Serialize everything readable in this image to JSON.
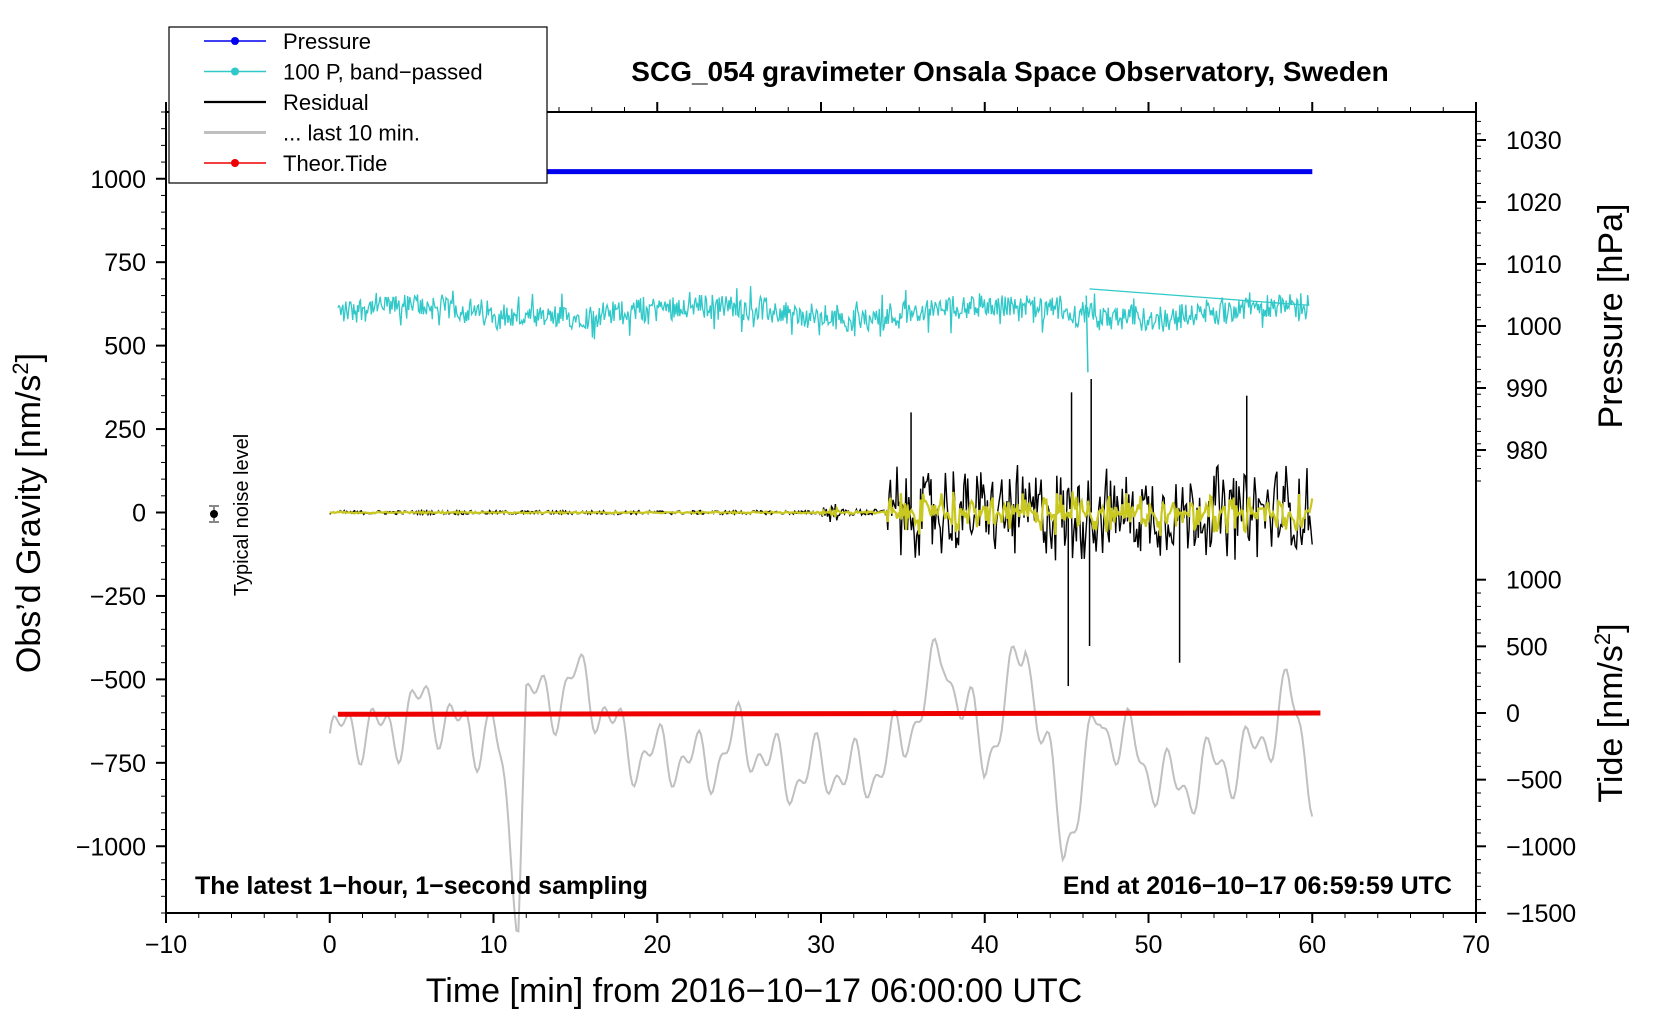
{
  "chart_data": {
    "type": "line",
    "title": "SCG_054 gravimeter Onsala Space Observatory, Sweden",
    "xlabel": "Time [min] from 2016−10−17 06:00:00 UTC",
    "ylabel_left": "Obs’d Gravity [nm/s²]",
    "ylabel_right_pressure": "Pressure [hPa]",
    "ylabel_right_tide": "Tide [nm/s²]",
    "xlim": [
      -10,
      70
    ],
    "ylim_left": [
      -1200,
      1200
    ],
    "x_ticks": [
      {
        "v": -10,
        "t": "−10"
      },
      {
        "v": 0,
        "t": "0"
      },
      {
        "v": 10,
        "t": "10"
      },
      {
        "v": 20,
        "t": "20"
      },
      {
        "v": 30,
        "t": "30"
      },
      {
        "v": 40,
        "t": "40"
      },
      {
        "v": 50,
        "t": "50"
      },
      {
        "v": 60,
        "t": "60"
      },
      {
        "v": 70,
        "t": "70"
      }
    ],
    "y_ticks_left": [
      {
        "v": 1000,
        "t": "1000"
      },
      {
        "v": 750,
        "t": "750"
      },
      {
        "v": 500,
        "t": "500"
      },
      {
        "v": 250,
        "t": "250"
      },
      {
        "v": 0,
        "t": "0"
      },
      {
        "v": -250,
        "t": "−250"
      },
      {
        "v": -500,
        "t": "−500"
      },
      {
        "v": -750,
        "t": "−750"
      },
      {
        "v": -1000,
        "t": "−1000"
      }
    ],
    "pressure_axis": {
      "ticks": [
        {
          "v": 1030,
          "t": "1030"
        },
        {
          "v": 1020,
          "t": "1020"
        },
        {
          "v": 1010,
          "t": "1010"
        },
        {
          "v": 1000,
          "t": "1000"
        },
        {
          "v": 990,
          "t": "990"
        },
        {
          "v": 980,
          "t": "980"
        }
      ]
    },
    "tide_axis": {
      "ticks": [
        {
          "v": 1000,
          "t": "1000"
        },
        {
          "v": 500,
          "t": "500"
        },
        {
          "v": 0,
          "t": "0"
        },
        {
          "v": -500,
          "t": "−500"
        },
        {
          "v": -1000,
          "t": "−1000"
        },
        {
          "v": -1500,
          "t": "−1500"
        }
      ]
    },
    "legend": [
      {
        "name": "Pressure",
        "color": "#0000ee",
        "marker": true
      },
      {
        "name": "100 P, band−passed",
        "color": "#30c8c8",
        "marker": true
      },
      {
        "name": "Residual",
        "color": "#000000",
        "marker": false
      },
      {
        "name": "... last 10 min.",
        "color": "#c0c0c0",
        "marker": false
      },
      {
        "name": "Theor.Tide",
        "color": "#ee0000",
        "marker": true
      }
    ],
    "series": [
      {
        "name": "Pressure",
        "color": "#0000ee",
        "x": [
          0,
          60
        ],
        "y_hpa": [
          1024.9,
          1024.9
        ],
        "y_gravity_axis": [
          1015,
          1015
        ]
      },
      {
        "name": "100 P, band−passed",
        "color": "#30c8c8",
        "x_range": [
          0.5,
          59.8
        ],
        "mean": 600,
        "min": 420,
        "max": 720
      },
      {
        "name": "Residual",
        "color": "#000000",
        "x_range": [
          0,
          60
        ],
        "mean": 0,
        "quiet_until": 34,
        "peaks": [
          {
            "x": 35.5,
            "y": 300
          },
          {
            "x": 45.3,
            "y": 360
          },
          {
            "x": 46.5,
            "y": 400
          },
          {
            "x": 56,
            "y": 350
          },
          {
            "x": 45.1,
            "y": -520
          },
          {
            "x": 46.4,
            "y": -400
          },
          {
            "x": 51.9,
            "y": -450
          }
        ]
      },
      {
        "name": "... last 10 min.",
        "color": "#c0c0c0",
        "x": [
          0,
          5,
          10,
          11.5,
          12,
          15,
          20,
          25,
          30,
          35,
          37.5,
          40,
          42.5,
          44.8,
          47,
          50,
          55,
          58.5,
          60
        ],
        "y": [
          -700,
          -600,
          -650,
          -1200,
          -550,
          -520,
          -760,
          -700,
          -800,
          -720,
          -390,
          -780,
          -350,
          -1050,
          -580,
          -800,
          -780,
          -560,
          -820
        ]
      },
      {
        "name": "Theor.Tide",
        "color": "#ee0000",
        "x": [
          0.5,
          60.5
        ],
        "y_nms2": [
          -10,
          0
        ],
        "y_gravity_axis": [
          -605,
          -598
        ]
      }
    ],
    "annotations": {
      "noise_label": "Typical noise level",
      "bottom_left": "The latest 1−hour, 1−second sampling",
      "bottom_right": "End at 2016−10−17 06:59:59 UTC"
    }
  }
}
